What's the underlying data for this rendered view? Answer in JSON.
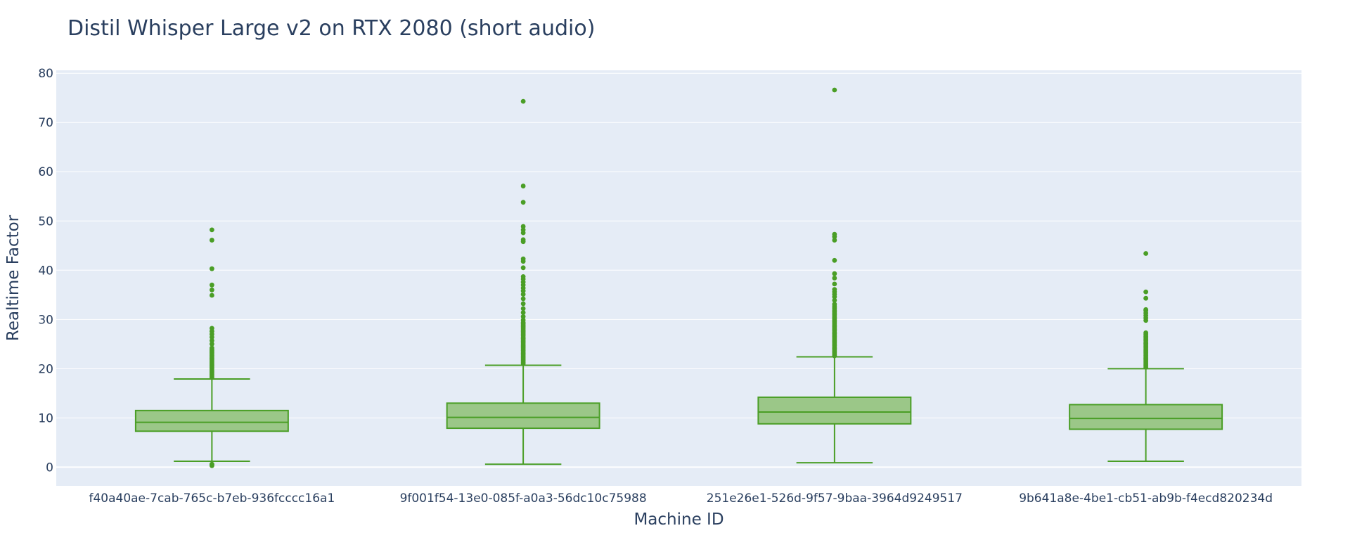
{
  "chart_data": {
    "type": "box",
    "title": "Distil Whisper Large v2 on RTX 2080 (short audio)",
    "xlabel": "Machine ID",
    "ylabel": "Realtime Factor",
    "ylim": [
      -3.8,
      80.6
    ],
    "yticks": [
      0,
      10,
      20,
      30,
      40,
      50,
      60,
      70,
      80
    ],
    "grid": true,
    "legend": "none",
    "colors": {
      "background": "#e5ecf6",
      "grid": "#ffffff",
      "box_fill": "#9bc788",
      "box_line": "#4a9e26",
      "text": "#2a3f5f"
    },
    "categories": [
      "f40a40ae-7cab-765c-b7eb-936fcccc16a1",
      "9f001f54-13e0-085f-a0a3-56dc10c75988",
      "251e26e1-526d-9f57-9baa-3964d9249517",
      "9b641a8e-4be1-cb51-ab9b-f4ecd820234d"
    ],
    "boxes": [
      {
        "category": "f40a40ae-7cab-765c-b7eb-936fcccc16a1",
        "lower_fence": 1.2,
        "q1": 7.3,
        "median": 9.1,
        "q3": 11.5,
        "upper_fence": 17.9,
        "outliers": [
          0.3,
          0.5,
          0.6,
          18.2,
          18.5,
          18.8,
          19.1,
          19.4,
          19.7,
          20.0,
          20.3,
          20.6,
          20.9,
          21.2,
          21.5,
          21.8,
          22.1,
          22.4,
          22.7,
          23.0,
          23.3,
          23.6,
          23.9,
          24.2,
          25.0,
          25.7,
          26.4,
          27.0,
          27.6,
          28.2,
          34.9,
          36.0,
          37.0,
          40.3,
          46.1,
          48.2
        ]
      },
      {
        "category": "9f001f54-13e0-085f-a0a3-56dc10c75988",
        "lower_fence": 0.6,
        "q1": 7.9,
        "median": 10.1,
        "q3": 13.0,
        "upper_fence": 20.7,
        "outliers": [
          21.0,
          21.3,
          21.6,
          21.9,
          22.2,
          22.5,
          22.8,
          23.1,
          23.4,
          23.7,
          24.0,
          24.3,
          24.6,
          24.9,
          25.2,
          25.5,
          25.8,
          26.1,
          26.4,
          26.7,
          27.0,
          27.3,
          27.6,
          27.9,
          28.2,
          28.5,
          28.8,
          29.1,
          29.4,
          29.9,
          30.6,
          31.4,
          32.2,
          33.2,
          34.2,
          35.1,
          35.8,
          36.4,
          37.0,
          37.6,
          38.2,
          38.7,
          40.5,
          41.8,
          42.3,
          45.8,
          46.2,
          47.6,
          48.2,
          48.9,
          53.8,
          57.1,
          74.3
        ]
      },
      {
        "category": "251e26e1-526d-9f57-9baa-3964d9249517",
        "lower_fence": 0.9,
        "q1": 8.8,
        "median": 11.2,
        "q3": 14.2,
        "upper_fence": 22.4,
        "outliers": [
          22.6,
          22.9,
          23.2,
          23.5,
          23.8,
          24.1,
          24.4,
          24.7,
          25.0,
          25.3,
          25.6,
          25.9,
          26.2,
          26.5,
          26.8,
          27.1,
          27.4,
          27.7,
          28.0,
          28.3,
          28.6,
          28.9,
          29.2,
          29.5,
          29.8,
          30.1,
          30.4,
          30.7,
          31.0,
          31.3,
          31.6,
          31.9,
          32.3,
          32.7,
          33.1,
          33.9,
          34.6,
          35.1,
          35.6,
          36.1,
          37.2,
          38.4,
          39.3,
          42.0,
          46.1,
          46.8,
          47.3,
          76.6
        ]
      },
      {
        "category": "9b641a8e-4be1-cb51-ab9b-f4ecd820234d",
        "lower_fence": 1.2,
        "q1": 7.7,
        "median": 9.9,
        "q3": 12.7,
        "upper_fence": 20.0,
        "outliers": [
          20.3,
          20.6,
          20.9,
          21.2,
          21.5,
          21.8,
          22.1,
          22.4,
          22.7,
          23.0,
          23.3,
          23.6,
          23.9,
          24.2,
          24.5,
          24.8,
          25.1,
          25.4,
          25.7,
          26.0,
          26.3,
          26.6,
          27.0,
          27.3,
          29.8,
          30.3,
          30.8,
          31.3,
          31.8,
          32.0,
          34.3,
          35.6,
          43.4
        ]
      }
    ]
  }
}
